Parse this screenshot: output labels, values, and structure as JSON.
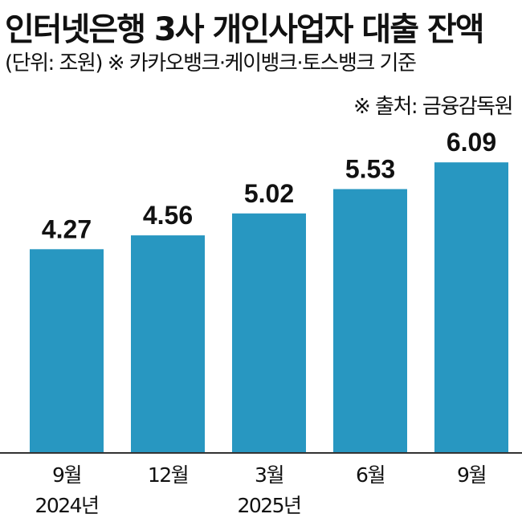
{
  "title": "인터넷은행 3사 개인사업자 대출 잔액",
  "subtitle": "(단위: 조원) ※ 카카오뱅크·케이뱅크·토스뱅크 기준",
  "source": "※ 출처: 금융감독원",
  "colors": {
    "bar": "#2897c1",
    "axis": "#333333"
  },
  "chart_data": {
    "type": "bar",
    "title": "인터넷은행 3사 개인사업자 대출 잔액",
    "subtitle": "(단위: 조원) ※ 카카오뱅크·케이뱅크·토스뱅크 기준",
    "xlabel": "",
    "ylabel": "",
    "categories": [
      "9월 2024년",
      "12월",
      "3월 2025년",
      "6월",
      "9월"
    ],
    "tick_lines": [
      [
        "9월",
        "2024년"
      ],
      [
        "12월"
      ],
      [
        "3월",
        "2025년"
      ],
      [
        "6월"
      ],
      [
        "9월"
      ]
    ],
    "values": [
      4.27,
      4.56,
      5.02,
      5.53,
      6.09
    ],
    "value_labels": [
      "4.27",
      "4.56",
      "5.02",
      "5.53",
      "6.09"
    ],
    "ylim": [
      0,
      6.8
    ],
    "grid": false,
    "legend": "none"
  }
}
